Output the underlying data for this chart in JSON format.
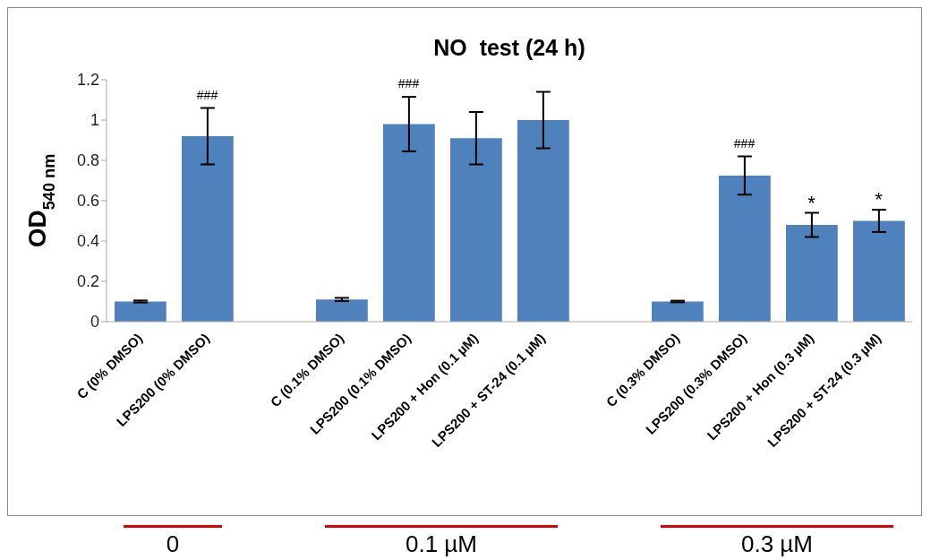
{
  "chart_data": {
    "type": "bar",
    "title": "NO  test (24 h)",
    "ylabel": "OD$_{540 nm}$",
    "categories": [
      "C (0% DMSO)",
      "LPS200 (0% DMSO)",
      null,
      "C (0.1% DMSO)",
      "LPS200 (0.1% DMSO)",
      "LPS200 + Hon (0.1 µM)",
      "LPS200 + ST-24 (0.1 µM)",
      null,
      "C (0.3% DMSO)",
      "LPS200 (0.3% DMSO)",
      "LPS200 + Hon (0.3 µM)",
      "LPS200 + ST-24 (0.3 µM)"
    ],
    "values": [
      0.1,
      0.92,
      null,
      0.11,
      0.98,
      0.91,
      1.0,
      null,
      0.1,
      0.725,
      0.48,
      0.5
    ],
    "errors": [
      0.005,
      0.14,
      null,
      0.008,
      0.135,
      0.13,
      0.14,
      null,
      0.004,
      0.095,
      0.06,
      0.055
    ],
    "color": "#4f81bd",
    "ylim": [
      0,
      1.2
    ],
    "yticks": [
      0,
      0.2,
      0.4,
      0.6,
      0.8,
      1,
      1.2
    ],
    "grid": false,
    "legend": false,
    "annotations": [
      "0",
      "0.1 µM",
      "0.3 µM"
    ],
    "value_labels": [
      null,
      "###",
      null,
      null,
      "###",
      null,
      null,
      null,
      null,
      "###",
      "*",
      "*"
    ]
  }
}
